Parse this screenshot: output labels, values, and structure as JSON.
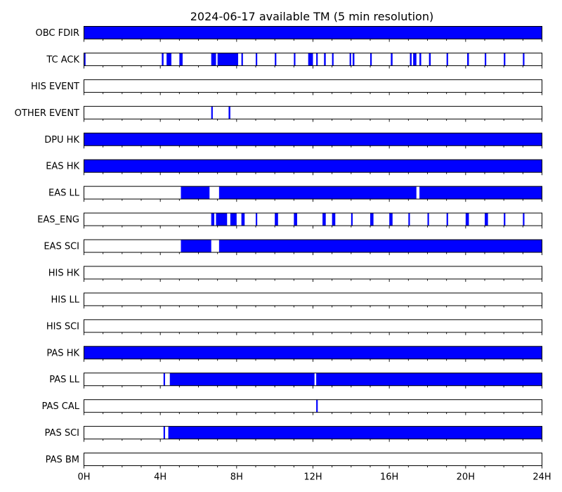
{
  "chart_data": {
    "type": "timeline",
    "title": "2024-06-17 available TM (5 min resolution)",
    "x_unit": "hours",
    "x_range": [
      0,
      24
    ],
    "x_ticks": [
      {
        "value": 0,
        "label": "0H"
      },
      {
        "value": 4,
        "label": "4H"
      },
      {
        "value": 8,
        "label": "8H"
      },
      {
        "value": 12,
        "label": "12H"
      },
      {
        "value": 16,
        "label": "16H"
      },
      {
        "value": 20,
        "label": "20H"
      },
      {
        "value": 24,
        "label": "24H"
      }
    ],
    "minor_tick_step_hours": 1,
    "bar_color": "#0000ff",
    "rows": [
      {
        "label": "OBC FDIR",
        "intervals": [
          [
            0,
            24
          ]
        ]
      },
      {
        "label": "TC ACK",
        "intervals": [
          [
            0.0,
            0.083
          ],
          [
            4.08,
            4.17
          ],
          [
            4.33,
            4.58
          ],
          [
            5.0,
            5.17
          ],
          [
            6.67,
            6.92
          ],
          [
            7.0,
            8.08
          ],
          [
            8.25,
            8.33
          ],
          [
            9.0,
            9.08
          ],
          [
            10.0,
            10.08
          ],
          [
            11.0,
            11.08
          ],
          [
            11.75,
            12.0
          ],
          [
            12.17,
            12.25
          ],
          [
            12.58,
            12.67
          ],
          [
            13.0,
            13.08
          ],
          [
            13.92,
            14.0
          ],
          [
            14.08,
            14.17
          ],
          [
            15.0,
            15.08
          ],
          [
            16.08,
            16.17
          ],
          [
            17.08,
            17.17
          ],
          [
            17.25,
            17.42
          ],
          [
            17.58,
            17.67
          ],
          [
            18.08,
            18.17
          ],
          [
            19.0,
            19.08
          ],
          [
            20.08,
            20.17
          ],
          [
            21.0,
            21.08
          ],
          [
            22.0,
            22.08
          ],
          [
            23.0,
            23.08
          ]
        ]
      },
      {
        "label": "HIS EVENT",
        "intervals": []
      },
      {
        "label": "OTHER EVENT",
        "intervals": [
          [
            6.67,
            6.75
          ],
          [
            7.58,
            7.67
          ]
        ]
      },
      {
        "label": "DPU HK",
        "intervals": [
          [
            0,
            24
          ]
        ]
      },
      {
        "label": "EAS HK",
        "intervals": [
          [
            0,
            24
          ]
        ]
      },
      {
        "label": "EAS LL",
        "intervals": [
          [
            5.08,
            6.58
          ],
          [
            7.08,
            17.42
          ],
          [
            17.58,
            24
          ]
        ]
      },
      {
        "label": "EAS_ENG",
        "intervals": [
          [
            6.67,
            6.83
          ],
          [
            6.92,
            7.5
          ],
          [
            7.67,
            8.0
          ],
          [
            8.25,
            8.42
          ],
          [
            9.0,
            9.08
          ],
          [
            10.0,
            10.17
          ],
          [
            11.0,
            11.17
          ],
          [
            12.5,
            12.67
          ],
          [
            13.0,
            13.17
          ],
          [
            14.0,
            14.08
          ],
          [
            15.0,
            15.17
          ],
          [
            16.0,
            16.17
          ],
          [
            17.0,
            17.08
          ],
          [
            18.0,
            18.08
          ],
          [
            19.0,
            19.08
          ],
          [
            20.0,
            20.17
          ],
          [
            21.0,
            21.17
          ],
          [
            22.0,
            22.08
          ],
          [
            23.0,
            23.08
          ]
        ]
      },
      {
        "label": "EAS SCI",
        "intervals": [
          [
            5.08,
            6.67
          ],
          [
            7.08,
            24
          ]
        ]
      },
      {
        "label": "HIS HK",
        "intervals": []
      },
      {
        "label": "HIS LL",
        "intervals": []
      },
      {
        "label": "HIS SCI",
        "intervals": []
      },
      {
        "label": "PAS HK",
        "intervals": [
          [
            0,
            24
          ]
        ]
      },
      {
        "label": "PAS LL",
        "intervals": [
          [
            4.17,
            4.25
          ],
          [
            4.5,
            12.08
          ],
          [
            12.17,
            24
          ]
        ]
      },
      {
        "label": "PAS CAL",
        "intervals": [
          [
            12.17,
            12.25
          ]
        ]
      },
      {
        "label": "PAS SCI",
        "intervals": [
          [
            4.17,
            4.25
          ],
          [
            4.42,
            24
          ]
        ]
      },
      {
        "label": "PAS BM",
        "intervals": []
      }
    ]
  }
}
